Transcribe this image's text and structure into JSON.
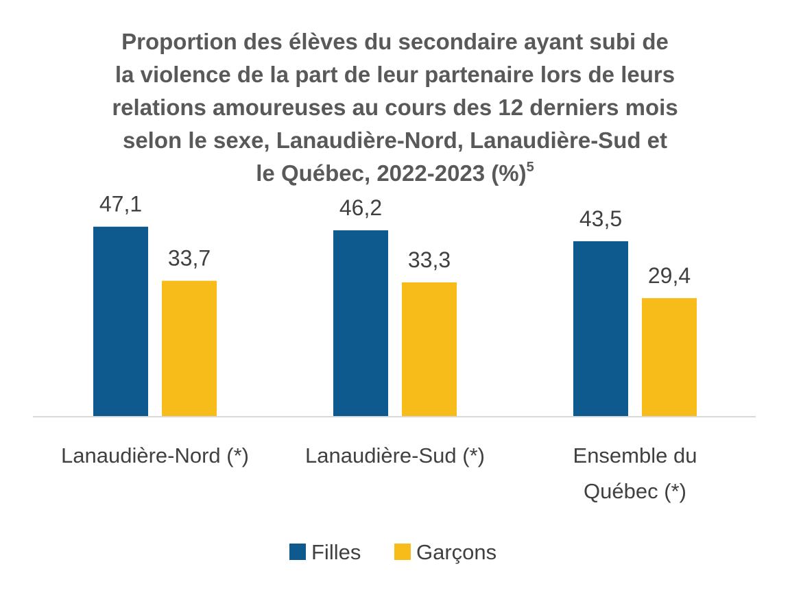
{
  "chart_data": {
    "type": "bar",
    "title_lines": [
      "Proportion des élèves du secondaire ayant subi de",
      "la violence de la part de leur partenaire lors de leurs",
      "relations amoureuses au cours des 12 derniers mois",
      "selon le sexe, Lanaudière-Nord, Lanaudière-Sud et",
      "le Québec, 2022-2023 (%)"
    ],
    "title_superscript": "5",
    "categories": [
      [
        "Lanaudière-Nord (*)"
      ],
      [
        "Lanaudière-Sud (*)"
      ],
      [
        "Ensemble du",
        "Québec (*)"
      ]
    ],
    "series": [
      {
        "name": "Filles",
        "color": "#0E5A8E",
        "values": [
          47.1,
          46.2,
          43.5
        ],
        "labels": [
          "47,1",
          "46,2",
          "43,5"
        ]
      },
      {
        "name": "Garçons",
        "color": "#F7BC1A",
        "values": [
          33.7,
          33.3,
          29.4
        ],
        "labels": [
          "33,7",
          "33,3",
          "29,4"
        ]
      }
    ],
    "ylim": [
      0,
      53
    ],
    "grid": false,
    "legend_position": "bottom"
  }
}
